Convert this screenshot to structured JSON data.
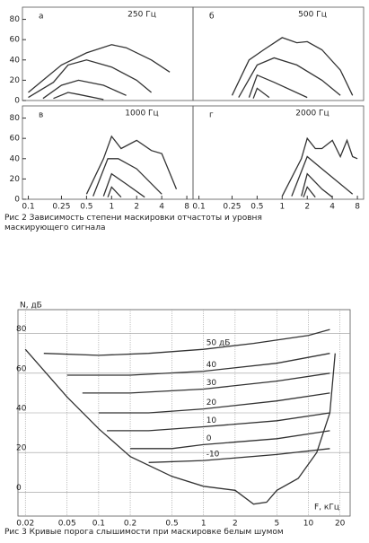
{
  "chart_data": [
    {
      "type": "line",
      "label": "а",
      "title": "250 Гц",
      "xlog": true,
      "xlim": [
        0.085,
        9.5
      ],
      "ylim": [
        0,
        92
      ],
      "yticks": [
        0,
        20,
        40,
        60,
        80
      ],
      "series": [
        {
          "x": [
            0.1,
            0.15,
            0.25,
            0.5,
            1,
            1.5,
            3,
            5
          ],
          "values": [
            8,
            20,
            35,
            47,
            55,
            52,
            40,
            28
          ]
        },
        {
          "x": [
            0.1,
            0.2,
            0.3,
            0.5,
            1,
            2,
            3
          ],
          "values": [
            3,
            18,
            35,
            40,
            33,
            20,
            8
          ]
        },
        {
          "x": [
            0.15,
            0.25,
            0.4,
            0.8,
            1.5
          ],
          "values": [
            2,
            15,
            20,
            15,
            5
          ]
        },
        {
          "x": [
            0.2,
            0.3,
            0.4,
            0.8
          ],
          "values": [
            2,
            8,
            6,
            1
          ]
        }
      ]
    },
    {
      "type": "line",
      "label": "б",
      "title": "500 Гц",
      "xlog": true,
      "xlim": [
        0.085,
        9.5
      ],
      "ylim": [
        0,
        92
      ],
      "series": [
        {
          "x": [
            0.25,
            0.4,
            0.6,
            1,
            1.5,
            2,
            3,
            5,
            7
          ],
          "values": [
            5,
            40,
            50,
            62,
            57,
            58,
            50,
            30,
            5
          ]
        },
        {
          "x": [
            0.3,
            0.5,
            0.8,
            1.5,
            3,
            5
          ],
          "values": [
            3,
            35,
            42,
            35,
            20,
            5
          ]
        },
        {
          "x": [
            0.4,
            0.5,
            0.8,
            2
          ],
          "values": [
            3,
            25,
            18,
            3
          ]
        },
        {
          "x": [
            0.45,
            0.5,
            0.7
          ],
          "values": [
            2,
            12,
            3
          ]
        }
      ]
    },
    {
      "type": "line",
      "label": "в",
      "title": "1000 Гц",
      "xlog": true,
      "xlim": [
        0.085,
        9.5
      ],
      "ylim": [
        0,
        92
      ],
      "yticks": [
        0,
        20,
        40,
        60,
        80
      ],
      "xticks": [
        0.1,
        0.25,
        0.5,
        1,
        2,
        4,
        8
      ],
      "series": [
        {
          "x": [
            0.5,
            0.8,
            1,
            1.3,
            2,
            3,
            4,
            6
          ],
          "values": [
            5,
            40,
            62,
            50,
            58,
            48,
            45,
            10
          ]
        },
        {
          "x": [
            0.6,
            0.9,
            1.2,
            2,
            4
          ],
          "values": [
            3,
            40,
            40,
            30,
            5
          ]
        },
        {
          "x": [
            0.8,
            1,
            1.5,
            2.5
          ],
          "values": [
            3,
            25,
            15,
            2
          ]
        },
        {
          "x": [
            0.9,
            1,
            1.3
          ],
          "values": [
            2,
            12,
            2
          ]
        }
      ]
    },
    {
      "type": "line",
      "label": "г",
      "title": "2000 Гц",
      "xlog": true,
      "xlim": [
        0.085,
        9.5
      ],
      "ylim": [
        0,
        92
      ],
      "xticks": [
        0.1,
        0.25,
        0.5,
        1,
        2,
        4,
        8
      ],
      "series": [
        {
          "x": [
            1,
            1.7,
            2,
            2.5,
            3,
            4,
            5,
            6,
            7,
            8
          ],
          "values": [
            3,
            40,
            60,
            50,
            50,
            58,
            42,
            58,
            42,
            40
          ]
        },
        {
          "x": [
            1.3,
            2,
            3,
            5,
            7
          ],
          "values": [
            3,
            42,
            30,
            15,
            5
          ]
        },
        {
          "x": [
            1.7,
            2,
            3,
            4
          ],
          "values": [
            3,
            25,
            10,
            2
          ]
        },
        {
          "x": [
            1.8,
            2,
            2.5
          ],
          "values": [
            2,
            12,
            2
          ]
        }
      ]
    },
    {
      "type": "line",
      "xlog": true,
      "grid": true,
      "ylabel": "N, дБ",
      "xlabel": "F, кГц",
      "xlim": [
        0.017,
        25
      ],
      "ylim": [
        -12,
        92
      ],
      "xticks": [
        0.02,
        0.05,
        0.1,
        0.2,
        0.5,
        1,
        2,
        5,
        10,
        20
      ],
      "yticks": [
        0,
        20,
        40,
        60,
        80
      ],
      "series": [
        {
          "x": [
            0.02,
            0.05,
            0.1,
            0.2,
            0.5,
            1,
            2,
            3,
            4,
            5,
            8,
            12,
            16,
            18
          ],
          "values": [
            72,
            48,
            32,
            18,
            8,
            3,
            1,
            -6,
            -5,
            1,
            7,
            20,
            40,
            70
          ]
        },
        {
          "name": "50 дБ",
          "x": [
            0.03,
            0.1,
            0.3,
            1,
            3,
            10,
            16
          ],
          "values": [
            70,
            69,
            70,
            72,
            75,
            79,
            82
          ]
        },
        {
          "name": "40",
          "x": [
            0.05,
            0.2,
            1,
            5,
            16
          ],
          "values": [
            59,
            59,
            61,
            65,
            70
          ]
        },
        {
          "name": "30",
          "x": [
            0.07,
            0.2,
            1,
            5,
            16
          ],
          "values": [
            50,
            50,
            52,
            56,
            60
          ]
        },
        {
          "name": "20",
          "x": [
            0.1,
            0.3,
            1,
            5,
            16
          ],
          "values": [
            40,
            40,
            42,
            46,
            50
          ]
        },
        {
          "name": "10",
          "x": [
            0.12,
            0.3,
            1,
            5,
            16
          ],
          "values": [
            31,
            31,
            33,
            36,
            40
          ]
        },
        {
          "name": "0",
          "x": [
            0.2,
            0.5,
            1,
            5,
            16
          ],
          "values": [
            22,
            22,
            24,
            27,
            31
          ]
        },
        {
          "name": "-10",
          "x": [
            0.3,
            1,
            5,
            16
          ],
          "values": [
            15,
            16,
            19,
            22
          ]
        }
      ]
    }
  ],
  "captions": [
    "Рис 2 Зависимость степени маскировки отчастоты и уровня маскирующего сигнала",
    "Рис 3 Кривые порога слышимости при маскировке белым шумом"
  ]
}
